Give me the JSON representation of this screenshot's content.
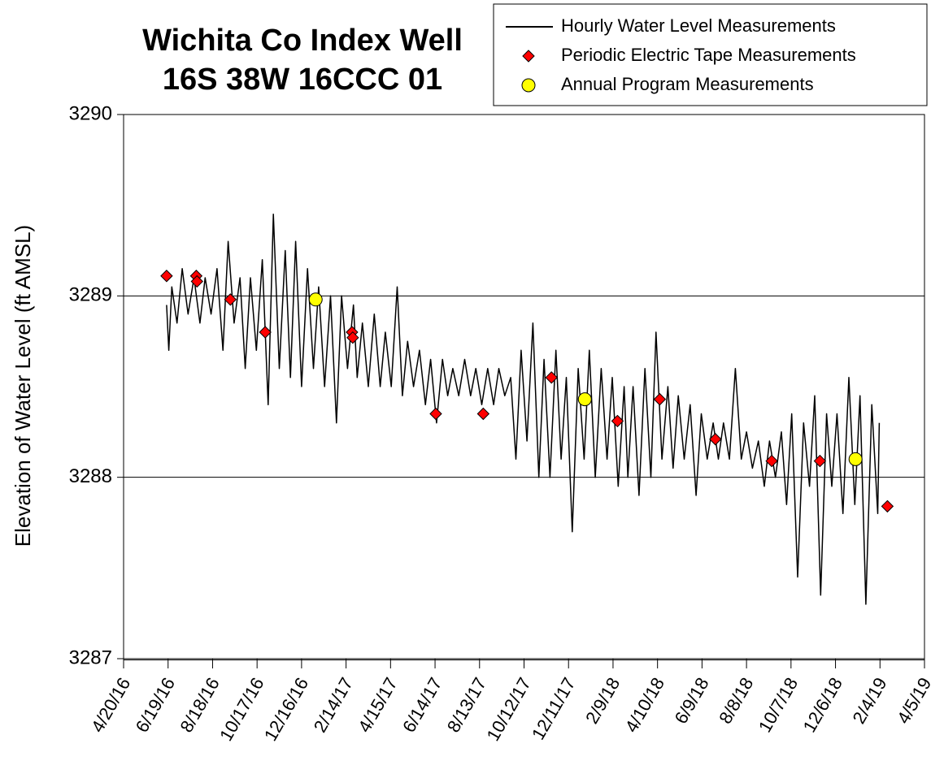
{
  "chart_data": {
    "type": "line",
    "title": "Wichita Co Index Well",
    "subtitle": "16S 38W 16CCC 01",
    "ylabel": "Elevation of Water Level (ft AMSL)",
    "ylim": [
      3287,
      3290
    ],
    "yticks": [
      3287,
      3288,
      3289,
      3290
    ],
    "xlim": [
      "4/20/16",
      "4/5/19"
    ],
    "xticks": [
      "4/20/16",
      "6/19/16",
      "8/18/16",
      "10/17/16",
      "12/16/16",
      "2/14/17",
      "4/15/17",
      "6/14/17",
      "8/13/17",
      "10/12/17",
      "12/11/17",
      "2/9/18",
      "4/10/18",
      "6/9/18",
      "8/8/18",
      "10/7/18",
      "12/6/18",
      "2/4/19",
      "4/5/19"
    ],
    "grid": true,
    "legend": "top-right",
    "series": [
      {
        "name": "Hourly Water Level Measurements",
        "type": "line",
        "color": "#000000",
        "x": [
          "6/17/16",
          "6/20/16",
          "6/24/16",
          "7/1/16",
          "7/8/16",
          "7/16/16",
          "7/24/16",
          "8/1/16",
          "8/8/16",
          "8/16/16",
          "8/24/16",
          "9/1/16",
          "9/8/16",
          "9/16/16",
          "9/24/16",
          "10/1/16",
          "10/8/16",
          "10/16/16",
          "10/24/16",
          "11/1/16",
          "11/8/16",
          "11/16/16",
          "11/24/16",
          "12/1/16",
          "12/8/16",
          "12/16/16",
          "12/24/16",
          "1/1/17",
          "1/8/17",
          "1/16/17",
          "1/24/17",
          "2/1/17",
          "2/8/17",
          "2/16/17",
          "2/24/17",
          "3/1/17",
          "3/8/17",
          "3/16/17",
          "3/24/17",
          "4/1/17",
          "4/8/17",
          "4/16/17",
          "4/24/17",
          "5/1/17",
          "5/8/17",
          "5/16/17",
          "5/24/17",
          "6/1/17",
          "6/8/17",
          "6/16/17",
          "6/24/17",
          "7/1/17",
          "7/8/17",
          "7/16/17",
          "7/24/17",
          "8/1/17",
          "8/8/17",
          "8/16/17",
          "8/24/17",
          "9/1/17",
          "9/8/17",
          "9/16/17",
          "9/24/17",
          "10/1/17",
          "10/8/17",
          "10/16/17",
          "10/24/17",
          "11/1/17",
          "11/8/17",
          "11/16/17",
          "11/24/17",
          "12/1/17",
          "12/8/17",
          "12/16/17",
          "12/24/17",
          "1/1/18",
          "1/8/18",
          "1/16/18",
          "1/24/18",
          "2/1/18",
          "2/8/18",
          "2/16/18",
          "2/24/18",
          "3/1/18",
          "3/8/18",
          "3/16/18",
          "3/24/18",
          "4/1/18",
          "4/8/18",
          "4/16/18",
          "4/24/18",
          "5/1/18",
          "5/8/18",
          "5/16/18",
          "5/24/18",
          "6/1/18",
          "6/8/18",
          "6/16/18",
          "6/24/18",
          "7/1/18",
          "7/8/18",
          "7/16/18",
          "7/24/18",
          "8/1/18",
          "8/8/18",
          "8/16/18",
          "8/24/18",
          "9/1/18",
          "9/8/18",
          "9/16/18",
          "9/24/18",
          "10/1/18",
          "10/8/18",
          "10/16/18",
          "10/24/18",
          "11/1/18",
          "11/8/18",
          "11/16/18",
          "11/24/18",
          "12/1/18",
          "12/8/18",
          "12/16/18",
          "12/24/18",
          "1/1/19",
          "1/8/19",
          "1/16/19",
          "1/24/19",
          "2/1/19",
          "2/3/19"
        ],
        "values": [
          3288.95,
          3288.7,
          3289.05,
          3288.85,
          3289.15,
          3288.9,
          3289.1,
          3288.85,
          3289.1,
          3288.9,
          3289.15,
          3288.7,
          3289.3,
          3288.85,
          3289.1,
          3288.6,
          3289.1,
          3288.7,
          3289.2,
          3288.4,
          3289.45,
          3288.6,
          3289.25,
          3288.55,
          3289.3,
          3288.5,
          3289.15,
          3288.6,
          3289.05,
          3288.5,
          3289.0,
          3288.3,
          3289.0,
          3288.6,
          3288.95,
          3288.55,
          3288.85,
          3288.5,
          3288.9,
          3288.5,
          3288.8,
          3288.5,
          3289.05,
          3288.45,
          3288.75,
          3288.5,
          3288.7,
          3288.4,
          3288.65,
          3288.3,
          3288.65,
          3288.45,
          3288.6,
          3288.45,
          3288.65,
          3288.45,
          3288.6,
          3288.4,
          3288.6,
          3288.4,
          3288.6,
          3288.45,
          3288.55,
          3288.1,
          3288.7,
          3288.2,
          3288.85,
          3288.0,
          3288.65,
          3288.0,
          3288.7,
          3288.1,
          3288.55,
          3287.7,
          3288.6,
          3288.1,
          3288.7,
          3288.0,
          3288.6,
          3288.1,
          3288.55,
          3287.95,
          3288.5,
          3288.0,
          3288.5,
          3287.9,
          3288.6,
          3288.0,
          3288.8,
          3288.1,
          3288.5,
          3288.05,
          3288.45,
          3288.1,
          3288.4,
          3287.9,
          3288.35,
          3288.1,
          3288.3,
          3288.1,
          3288.3,
          3288.1,
          3288.6,
          3288.1,
          3288.25,
          3288.05,
          3288.2,
          3287.95,
          3288.2,
          3288.0,
          3288.25,
          3287.85,
          3288.35,
          3287.45,
          3288.3,
          3287.95,
          3288.45,
          3287.35,
          3288.35,
          3287.95,
          3288.35,
          3287.8,
          3288.55,
          3287.85,
          3288.45,
          3287.3,
          3288.4,
          3287.8,
          3288.3
        ]
      },
      {
        "name": "Periodic Electric Tape Measurements",
        "type": "scatter",
        "marker": "diamond",
        "color": "#ff0000",
        "x": [
          "6/17/16",
          "7/27/16",
          "7/28/16",
          "9/11/16",
          "10/28/16",
          "2/22/17",
          "2/23/17",
          "6/15/17",
          "8/18/17",
          "11/18/17",
          "2/15/18",
          "4/13/18",
          "6/27/18",
          "9/11/18",
          "11/15/18",
          "2/14/19"
        ],
        "values": [
          3289.11,
          3289.11,
          3289.08,
          3288.98,
          3288.8,
          3288.8,
          3288.77,
          3288.35,
          3288.35,
          3288.55,
          3288.31,
          3288.43,
          3288.21,
          3288.09,
          3288.09,
          3287.84
        ]
      },
      {
        "name": "Annual Program Measurements",
        "type": "scatter",
        "marker": "circle",
        "color": "#ffff00",
        "x": [
          "1/4/17",
          "1/2/18",
          "1/2/19"
        ],
        "values": [
          3288.98,
          3288.43,
          3288.1
        ]
      }
    ]
  }
}
